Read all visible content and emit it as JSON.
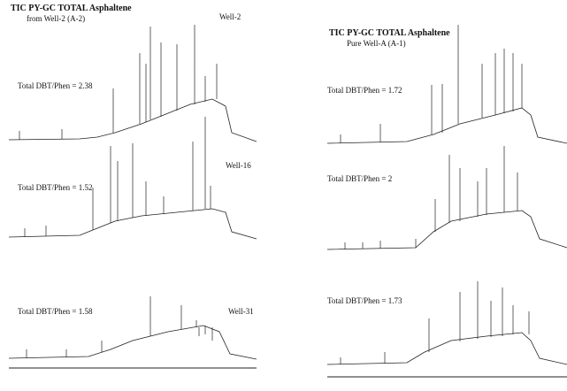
{
  "left": {
    "title": "TIC PY-GC TOTAL Asphaltene",
    "subtitle": "from Well-2 (A-2)",
    "traces": [
      {
        "label": "Total DBT/Phen = 2.38",
        "well": "Well-2"
      },
      {
        "label": "Total DBT/Phen = 1.52",
        "well": "Well-16"
      },
      {
        "label": "Total DBT/Phen = 1.58",
        "well": "Well-31"
      }
    ]
  },
  "right": {
    "title": "TIC PY-GC TOTAL Asphaltene",
    "subtitle": "Pure Well-A (A-1)",
    "traces": [
      {
        "label": "Total DBT/Phen = 1.72"
      },
      {
        "label": "Total DBT/Phen = 2"
      },
      {
        "label": "Total DBT/Phen = 1.73"
      }
    ]
  }
}
